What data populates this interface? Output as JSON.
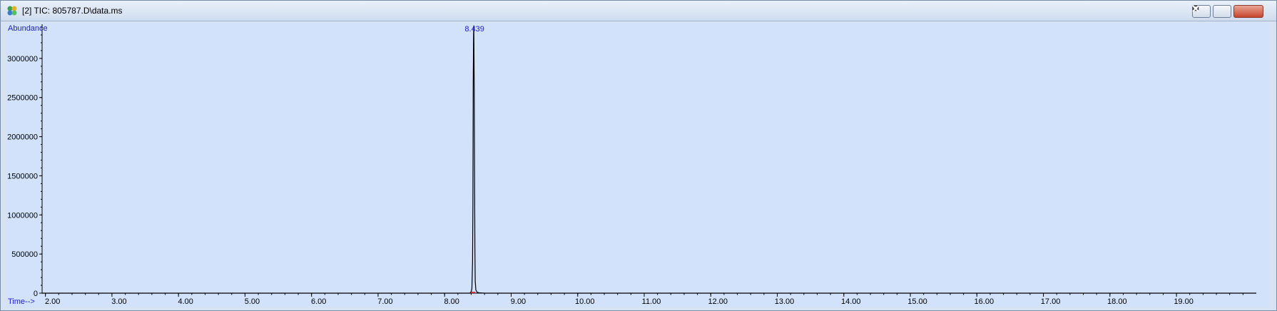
{
  "window": {
    "title": "[2] TIC: 805787.D\\data.ms"
  },
  "controls": {
    "minimize": "minimize",
    "restore": "restore",
    "close": "close"
  },
  "colors": {
    "plot_bg": "#d2e2fb",
    "axis_label": "#1c1cd0",
    "trace": "#000000",
    "axis": "#000000"
  },
  "chart_data": {
    "type": "line",
    "title": "",
    "ylabel": "Abundance",
    "xlabel": "Time-->",
    "xlim": [
      1.95,
      20.2
    ],
    "ylim": [
      0,
      3400000
    ],
    "x_ticks": [
      2.0,
      3.0,
      4.0,
      5.0,
      6.0,
      7.0,
      8.0,
      9.0,
      10.0,
      11.0,
      12.0,
      13.0,
      14.0,
      15.0,
      16.0,
      17.0,
      18.0,
      19.0
    ],
    "x_tick_labels": [
      "2.00",
      "3.00",
      "4.00",
      "5.00",
      "6.00",
      "7.00",
      "8.00",
      "9.00",
      "10.00",
      "11.00",
      "12.00",
      "13.00",
      "14.00",
      "15.00",
      "16.00",
      "17.00",
      "18.00",
      "19.00"
    ],
    "y_ticks": [
      0,
      500000,
      1000000,
      1500000,
      2000000,
      2500000,
      3000000
    ],
    "y_tick_labels": [
      "0",
      "500000",
      "1000000",
      "1500000",
      "2000000",
      "2500000",
      "3000000"
    ],
    "series": [
      {
        "name": "TIC",
        "x": [
          1.95,
          8.38,
          8.4,
          8.41,
          8.42,
          8.425,
          8.43,
          8.435,
          8.439,
          8.445,
          8.45,
          8.455,
          8.46,
          8.47,
          8.49,
          8.52,
          8.6,
          20.2
        ],
        "y": [
          0,
          0,
          20000,
          60000,
          400000,
          1100000,
          2700000,
          3300000,
          3420000,
          2600000,
          1500000,
          600000,
          150000,
          40000,
          10000,
          5000,
          0,
          0
        ]
      }
    ],
    "annotations": [
      {
        "x": 8.439,
        "label": "8.439"
      }
    ]
  }
}
